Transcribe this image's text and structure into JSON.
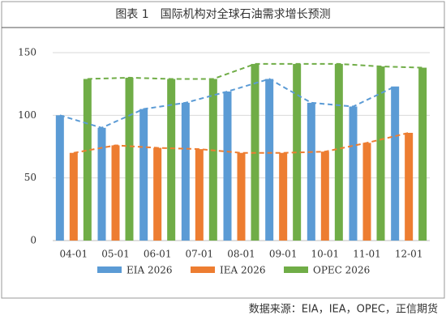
{
  "chart_data": {
    "type": "bar",
    "title": "图表 1　国际机构对全球石油需求增长预测",
    "categories": [
      "04-01",
      "05-01",
      "06-01",
      "07-01",
      "08-01",
      "09-01",
      "10-01",
      "11-01",
      "12-01"
    ],
    "series": [
      {
        "name": "EIA 2026",
        "color": "#5b9bd5",
        "values": [
          100,
          90,
          105,
          110,
          119,
          129,
          110,
          107,
          123
        ]
      },
      {
        "name": "IEA 2026",
        "color": "#ed7d31",
        "values": [
          70,
          76,
          74,
          73,
          70,
          70,
          71,
          78,
          86
        ]
      },
      {
        "name": "OPEC 2026",
        "color": "#70ad47",
        "values": [
          129,
          130,
          129,
          129,
          141,
          141,
          141,
          139,
          138
        ]
      }
    ],
    "ylim": [
      0,
      150
    ],
    "yticks": [
      0,
      50,
      100,
      150
    ],
    "grid": true,
    "source": "数据来源：EIA，IEA，OPEC，正信期货"
  }
}
